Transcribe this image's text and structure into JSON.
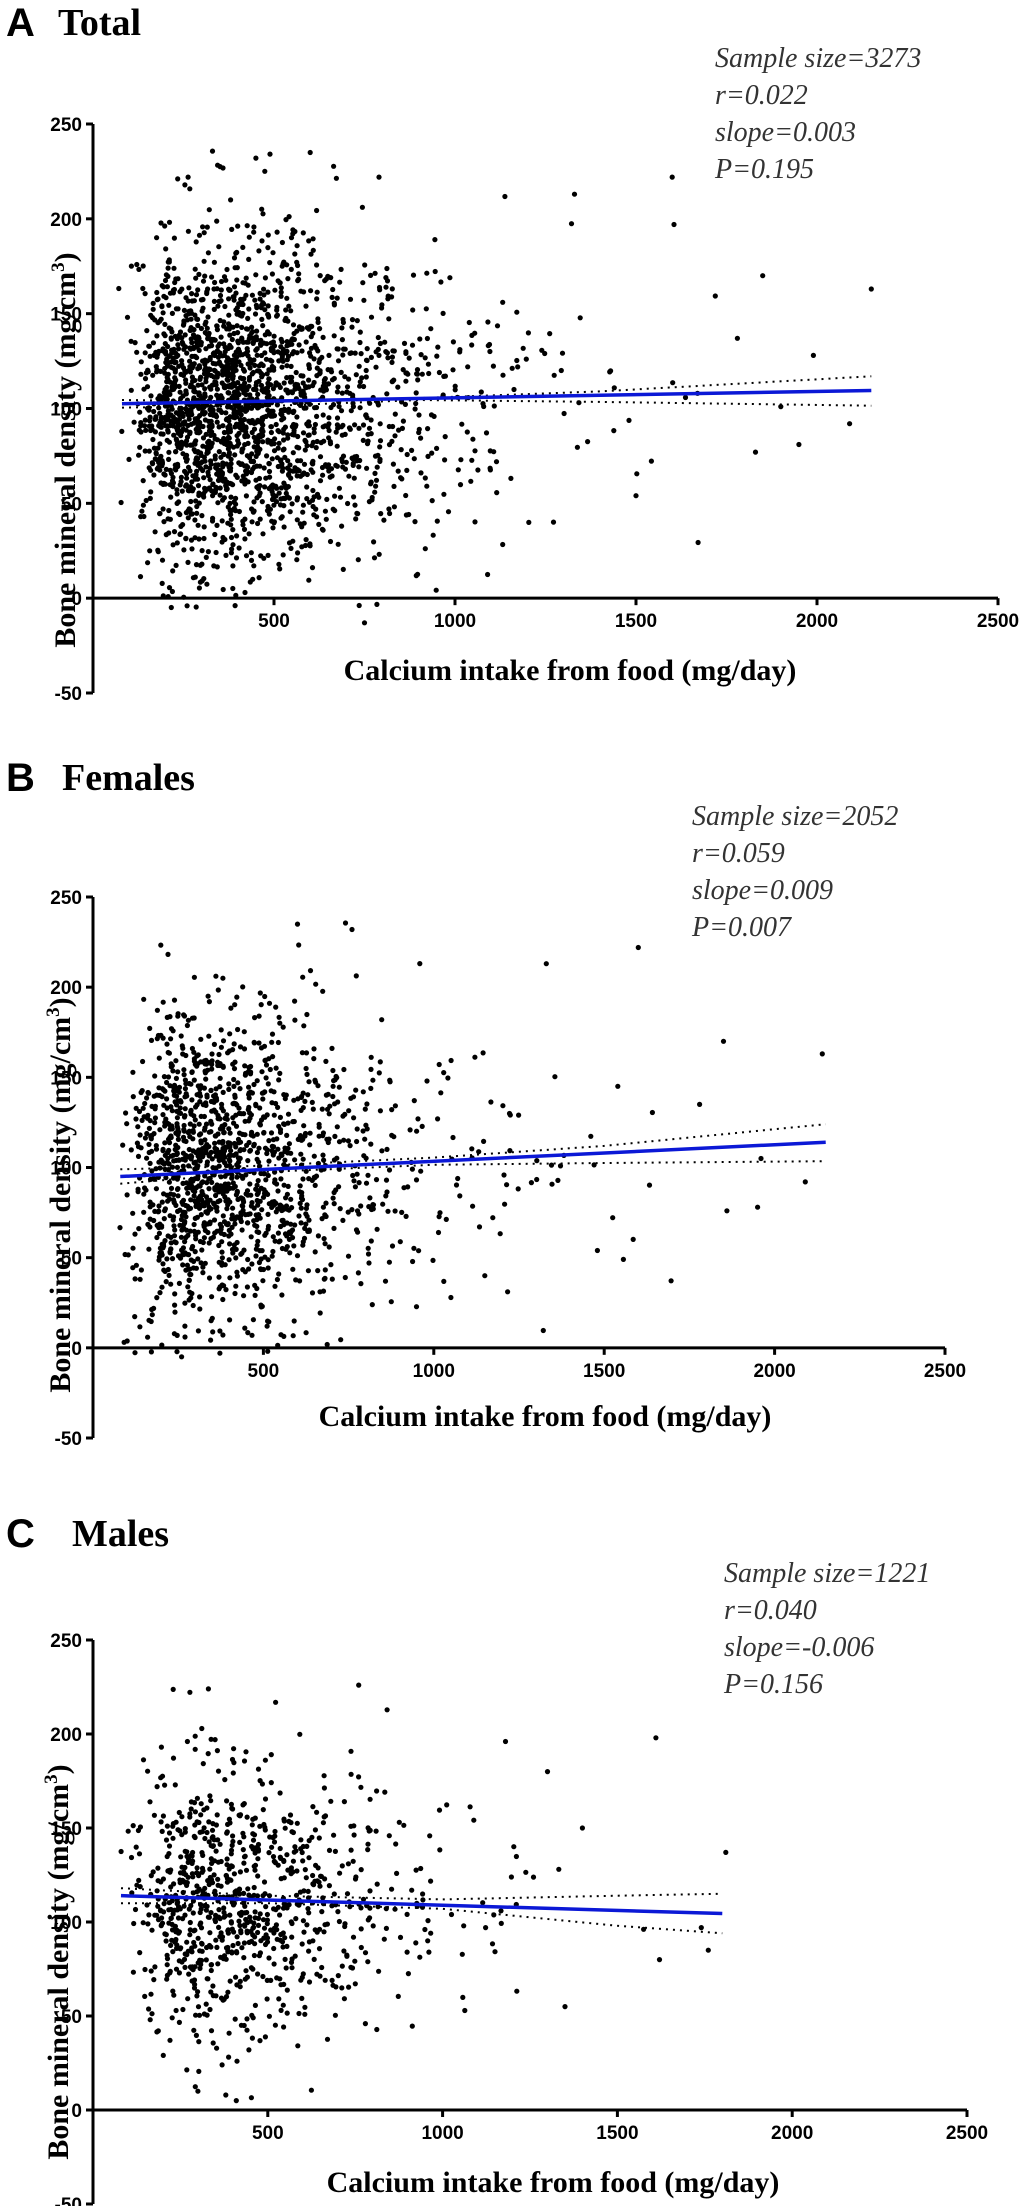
{
  "chart_data": [
    {
      "type": "scatter",
      "panel": "A",
      "title": "Total",
      "xlabel": "Calcium intake from food (mg/day)",
      "ylabel": "Bone mineral density (mg/cm",
      "ylabel_sup": "3",
      "ylabel_close": ")",
      "xlim": [
        0,
        2500
      ],
      "ylim": [
        -50,
        250
      ],
      "xticks": [
        500,
        1000,
        1500,
        2000,
        2500
      ],
      "yticks": [
        -50,
        0,
        50,
        100,
        150,
        200,
        250
      ],
      "stats": [
        "Sample size=3273",
        "r=0.022",
        "slope=0.003",
        "P=0.195"
      ],
      "fit": {
        "x0": 80,
        "y0": 102.5,
        "x1": 2150,
        "y1": 109.5
      },
      "ci_upper": [
        [
          80,
          104.5
        ],
        [
          500,
          103.6
        ],
        [
          900,
          105.5
        ],
        [
          1400,
          109
        ],
        [
          2150,
          117
        ]
      ],
      "ci_lower": [
        [
          80,
          100.5
        ],
        [
          500,
          101.4
        ],
        [
          900,
          104.5
        ],
        [
          1400,
          103.5
        ],
        [
          2150,
          101.5
        ]
      ],
      "cloud": {
        "n": 2200,
        "x_lognorm_mu": 6.0,
        "x_lognorm_sigma": 0.5,
        "x_min": 60,
        "x_max": 2150,
        "y_mean": 103,
        "y_sd": 42,
        "y_min": -5,
        "y_max": 236,
        "seed": 11
      },
      "points": [
        [
          1600,
          222
        ],
        [
          1605,
          197
        ],
        [
          1850,
          170
        ],
        [
          1330,
          213
        ],
        [
          1780,
          137
        ],
        [
          1900,
          101
        ],
        [
          1950,
          81
        ],
        [
          1830,
          77
        ],
        [
          2150,
          163
        ],
        [
          2090,
          92
        ],
        [
          1990,
          128
        ],
        [
          1500,
          54
        ],
        [
          750,
          -13
        ],
        [
          790,
          222
        ],
        [
          600,
          235
        ],
        [
          450,
          232
        ],
        [
          380,
          210
        ],
        [
          260,
          -4
        ],
        [
          420,
          3
        ]
      ]
    },
    {
      "type": "scatter",
      "panel": "B",
      "title": "Females",
      "xlabel": "Calcium intake from food (mg/day)",
      "ylabel": "Bone mineral density (mg/cm",
      "ylabel_sup": "3",
      "ylabel_close": ")",
      "xlim": [
        0,
        2500
      ],
      "ylim": [
        -50,
        250
      ],
      "xticks": [
        500,
        1000,
        1500,
        2000,
        2500
      ],
      "yticks": [
        -50,
        0,
        50,
        100,
        150,
        200,
        250
      ],
      "stats": [
        "Sample size=2052",
        "r=0.059",
        "slope=0.009",
        "P=0.007"
      ],
      "fit": {
        "x0": 80,
        "y0": 95,
        "x1": 2150,
        "y1": 114
      },
      "ci_upper": [
        [
          80,
          99
        ],
        [
          500,
          101
        ],
        [
          1000,
          105.5
        ],
        [
          1500,
          112
        ],
        [
          2150,
          124
        ]
      ],
      "ci_lower": [
        [
          80,
          91
        ],
        [
          500,
          97.5
        ],
        [
          1000,
          101.5
        ],
        [
          1500,
          102.5
        ],
        [
          2150,
          103.5
        ]
      ],
      "cloud": {
        "n": 1500,
        "x_lognorm_mu": 5.95,
        "x_lognorm_sigma": 0.52,
        "x_min": 60,
        "x_max": 2150,
        "y_mean": 98,
        "y_sd": 42,
        "y_min": -5,
        "y_max": 236,
        "seed": 23
      },
      "points": [
        [
          1600,
          222
        ],
        [
          1850,
          170
        ],
        [
          1330,
          213
        ],
        [
          1540,
          145
        ],
        [
          1960,
          105
        ],
        [
          1860,
          76
        ],
        [
          1950,
          78
        ],
        [
          2140,
          163
        ],
        [
          2090,
          92
        ],
        [
          1480,
          54
        ],
        [
          1780,
          135
        ],
        [
          260,
          -5
        ],
        [
          600,
          235
        ],
        [
          760,
          232
        ]
      ]
    },
    {
      "type": "scatter",
      "panel": "C",
      "title": "Males",
      "xlabel": "Calcium intake from food (mg/day)",
      "ylabel": "Bone mineral density (mg/cm",
      "ylabel_sup": "3",
      "ylabel_close": ")",
      "xlim": [
        0,
        2500
      ],
      "ylim": [
        -50,
        250
      ],
      "xticks": [
        500,
        1000,
        1500,
        2000,
        2500
      ],
      "yticks": [
        -50,
        0,
        50,
        100,
        150,
        200,
        250
      ],
      "stats": [
        "Sample size=1221",
        "r=0.040",
        "slope=-0.006",
        "P=0.156"
      ],
      "fit": {
        "x0": 80,
        "y0": 114,
        "x1": 1800,
        "y1": 104.5
      },
      "ci_upper": [
        [
          80,
          118
        ],
        [
          500,
          114
        ],
        [
          1000,
          112
        ],
        [
          1500,
          114
        ],
        [
          1800,
          115
        ]
      ],
      "ci_lower": [
        [
          80,
          110
        ],
        [
          500,
          110
        ],
        [
          1000,
          107
        ],
        [
          1500,
          98
        ],
        [
          1800,
          94
        ]
      ],
      "cloud": {
        "n": 900,
        "x_lognorm_mu": 6.0,
        "x_lognorm_sigma": 0.48,
        "x_min": 60,
        "x_max": 1800,
        "y_mean": 112,
        "y_sd": 36,
        "y_min": 5,
        "y_max": 226,
        "seed": 37
      },
      "points": [
        [
          1610,
          198
        ],
        [
          1180,
          196
        ],
        [
          1300,
          180
        ],
        [
          1400,
          150
        ],
        [
          1740,
          97
        ],
        [
          1760,
          85
        ],
        [
          1810,
          137
        ],
        [
          1350,
          55
        ],
        [
          760,
          226
        ],
        [
          330,
          224
        ],
        [
          380,
          8
        ],
        [
          410,
          5
        ],
        [
          300,
          10
        ]
      ]
    }
  ]
}
